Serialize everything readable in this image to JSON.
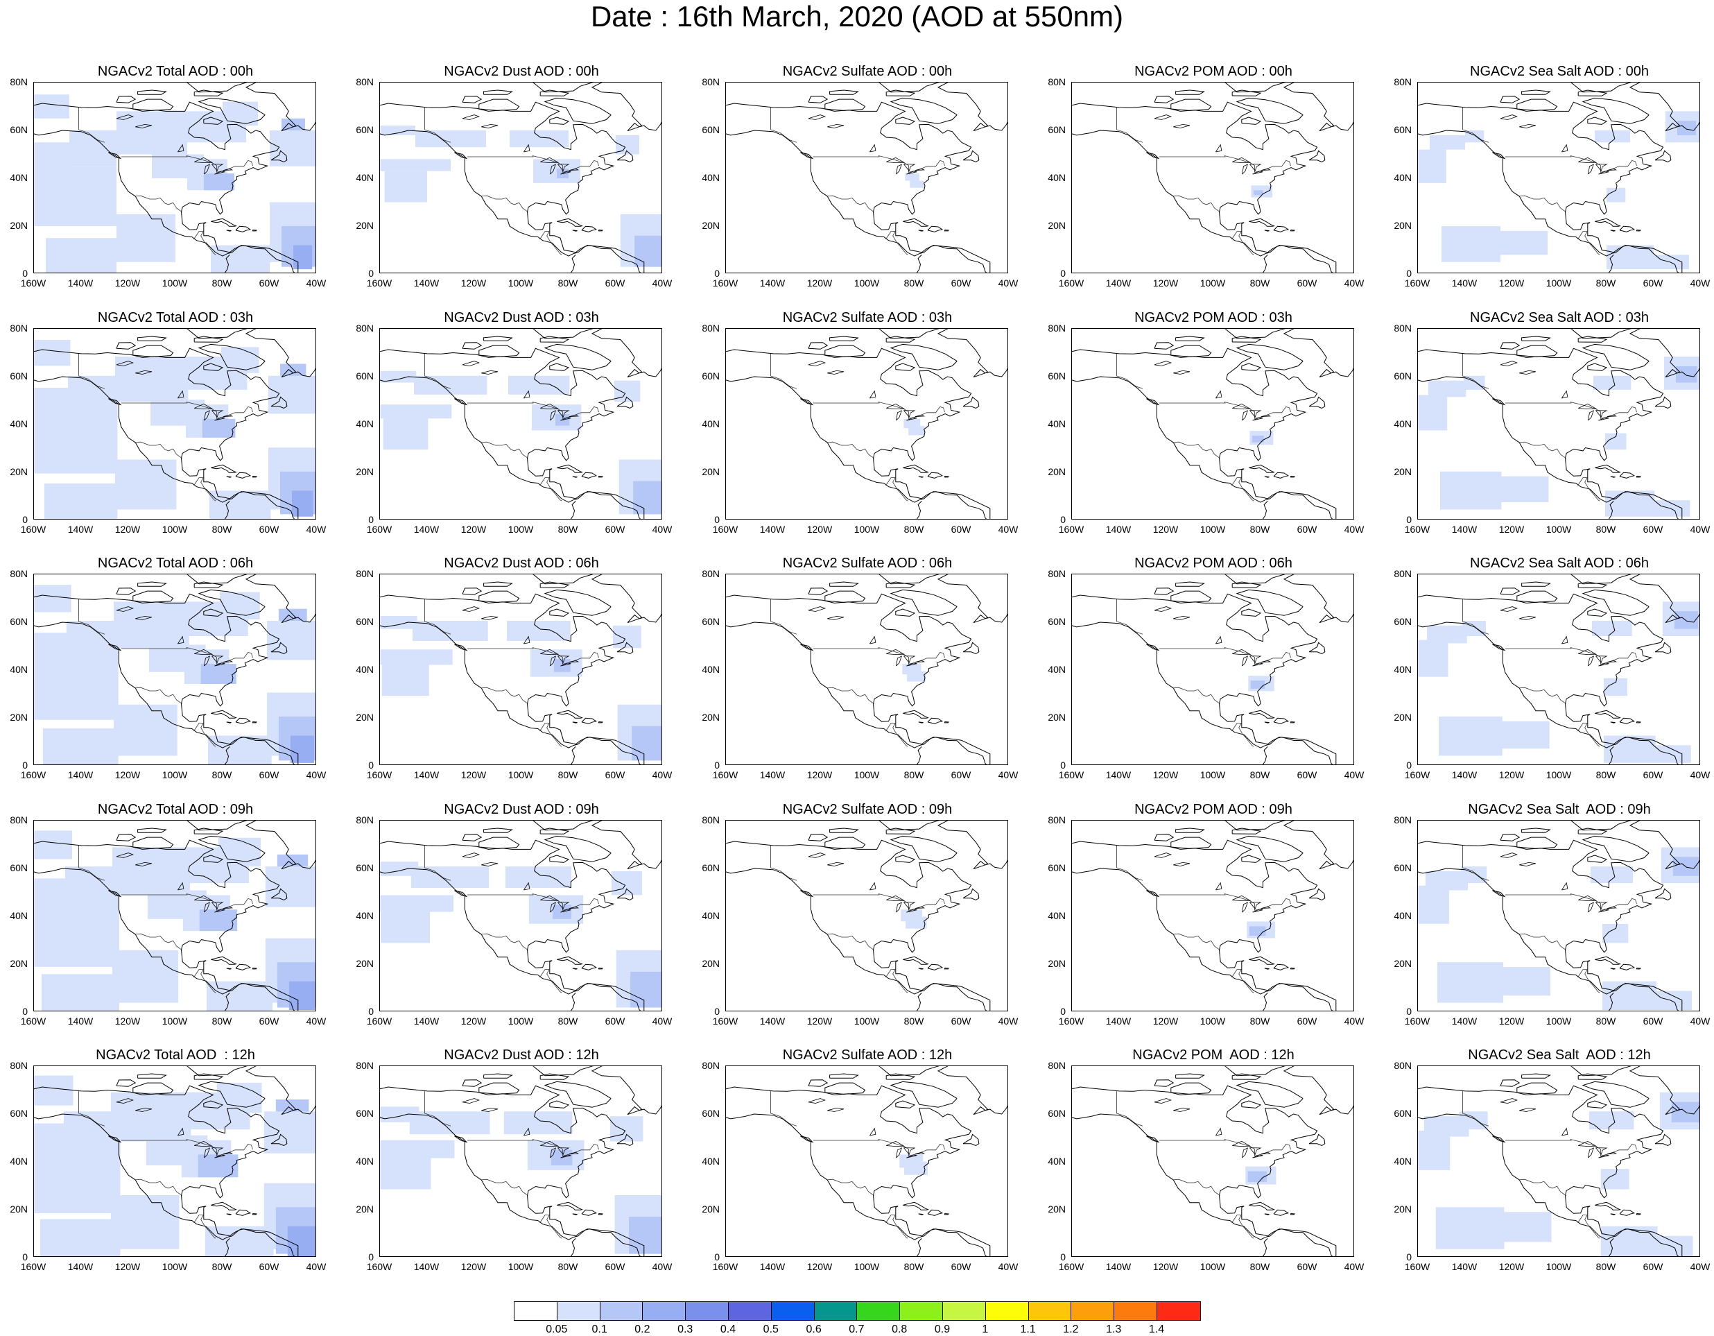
{
  "page": {
    "title": "Date : 16th March, 2020 (AOD at 550nm)"
  },
  "map": {
    "lat_labels": [
      "80N",
      "60N",
      "40N",
      "20N",
      "0"
    ],
    "lon_labels": [
      "160W",
      "140W",
      "120W",
      "100W",
      "80W",
      "60W",
      "40W"
    ],
    "extent": {
      "lon": [
        -160,
        -40
      ],
      "lat": [
        0,
        80
      ]
    },
    "coastline_color": "#000000"
  },
  "panels": [
    {
      "title": "NGACv2 Total AOD : 00h",
      "species": "total",
      "hour": "00h"
    },
    {
      "title": "NGACv2 Dust AOD : 00h",
      "species": "dust",
      "hour": "00h"
    },
    {
      "title": "NGACv2 Sulfate AOD : 00h",
      "species": "sulfate",
      "hour": "00h"
    },
    {
      "title": "NGACv2 POM AOD : 00h",
      "species": "pom",
      "hour": "00h"
    },
    {
      "title": "NGACv2 Sea Salt AOD : 00h",
      "species": "seasalt",
      "hour": "00h"
    },
    {
      "title": "NGACv2 Total AOD : 03h",
      "species": "total",
      "hour": "03h"
    },
    {
      "title": "NGACv2 Dust AOD : 03h",
      "species": "dust",
      "hour": "03h"
    },
    {
      "title": "NGACv2 Sulfate AOD : 03h",
      "species": "sulfate",
      "hour": "03h"
    },
    {
      "title": "NGACv2 POM AOD : 03h",
      "species": "pom",
      "hour": "03h"
    },
    {
      "title": "NGACv2 Sea Salt AOD : 03h",
      "species": "seasalt",
      "hour": "03h"
    },
    {
      "title": "NGACv2 Total AOD : 06h",
      "species": "total",
      "hour": "06h"
    },
    {
      "title": "NGACv2 Dust AOD : 06h",
      "species": "dust",
      "hour": "06h"
    },
    {
      "title": "NGACv2 Sulfate AOD : 06h",
      "species": "sulfate",
      "hour": "06h"
    },
    {
      "title": "NGACv2 POM AOD : 06h",
      "species": "pom",
      "hour": "06h"
    },
    {
      "title": "NGACv2 Sea Salt AOD : 06h",
      "species": "seasalt",
      "hour": "06h"
    },
    {
      "title": "NGACv2 Total AOD : 09h",
      "species": "total",
      "hour": "09h"
    },
    {
      "title": "NGACv2 Dust AOD : 09h",
      "species": "dust",
      "hour": "09h"
    },
    {
      "title": "NGACv2 Sulfate AOD : 09h",
      "species": "sulfate",
      "hour": "09h"
    },
    {
      "title": "NGACv2 POM AOD : 09h",
      "species": "pom",
      "hour": "09h"
    },
    {
      "title": "NGACv2 Sea Salt  AOD : 09h",
      "species": "seasalt",
      "hour": "09h"
    },
    {
      "title": "NGACv2 Total AOD  : 12h",
      "species": "total",
      "hour": "12h"
    },
    {
      "title": "NGACv2 Dust AOD : 12h",
      "species": "dust",
      "hour": "12h"
    },
    {
      "title": "NGACv2 Sulfate AOD : 12h",
      "species": "sulfate",
      "hour": "12h"
    },
    {
      "title": "NGACv2 POM  AOD : 12h",
      "species": "pom",
      "hour": "12h"
    },
    {
      "title": "NGACv2 Sea Salt  AOD : 12h",
      "species": "seasalt",
      "hour": "12h"
    }
  ],
  "colorbar": {
    "colors": [
      "#ffffff",
      "#d6e2fb",
      "#b5c7f7",
      "#97aef2",
      "#7b90ec",
      "#5d66e0",
      "#0a5ef0",
      "#05978d",
      "#35d61c",
      "#8ef01a",
      "#c6f542",
      "#fdfd0a",
      "#fdc60a",
      "#fd9f0c",
      "#fd7a0d",
      "#fd2a14"
    ],
    "labels": [
      "0.05",
      "0.1",
      "0.2",
      "0.3",
      "0.4",
      "0.5",
      "0.6",
      "0.7",
      "0.8",
      "0.9",
      "1",
      "1.1",
      "1.2",
      "1.3",
      "1.4"
    ]
  }
}
